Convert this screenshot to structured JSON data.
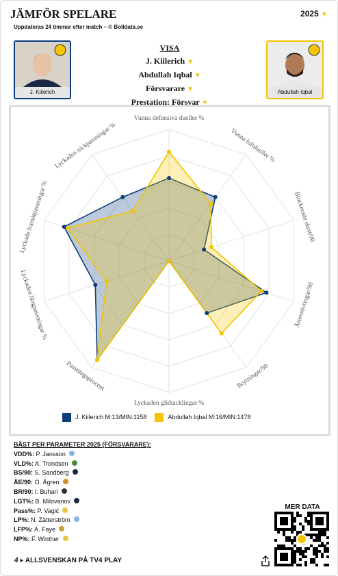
{
  "header": {
    "title": "JÄMFÖR SPELARE",
    "subtitle": "Uppdateras 24 timmar efter match – © Bolldata.se",
    "season": "2025"
  },
  "players": [
    "J. Kiilerich",
    "Abdullah Iqbal"
  ],
  "selector": {
    "heading": "VISA",
    "options": [
      "J. Kiilerich",
      "Abdullah Iqbal",
      "Försvarare",
      "Prestation: Försvar"
    ]
  },
  "chart_data": {
    "type": "radar",
    "categories": [
      "Vunna defensiva dueller %",
      "Vunna luftdueller %",
      "Blockerade skott/90",
      "Återerövringar/90",
      "Brytningar/90",
      "Lyckaden glidtacklingar %",
      "Passningsprocent",
      "Lyckaden långpassningar %",
      "Lyckade framåtpassningar %",
      "Lyckaden nickpassningar %"
    ],
    "series": [
      {
        "name": "J. Kiilerich M:13/MIN:1158",
        "color": "#0b3d7a",
        "values": [
          63,
          60,
          28,
          78,
          49,
          0,
          93,
          59,
          84,
          60
        ]
      },
      {
        "name": "Abdullah Iqbal M:16/MIN:1478",
        "color": "#f5c400",
        "values": [
          83,
          54,
          34,
          74,
          68,
          0,
          93,
          50,
          81,
          47
        ]
      }
    ],
    "rlim": [
      0,
      100
    ],
    "rticks": [
      20,
      40,
      60,
      80,
      100
    ],
    "grid": true
  },
  "best": {
    "title": "BÄST PER PARAMETER 2025 (FÖRSVARARE):",
    "items": [
      {
        "key": "VDD%:",
        "name": "P. Jansson"
      },
      {
        "key": "VLD%:",
        "name": "A. Trondsen"
      },
      {
        "key": "BS/90:",
        "name": "S. Sandberg"
      },
      {
        "key": "ÅE/90:",
        "name": "O. Ågren"
      },
      {
        "key": "BR/90:",
        "name": "I. Buhari"
      },
      {
        "key": "LGT%:",
        "name": "B. Milovanov"
      },
      {
        "key": "Pass%:",
        "name": "P. Vagić"
      },
      {
        "key": "LP%:",
        "name": "N. Zätterström"
      },
      {
        "key": "LFP%:",
        "name": "A. Faye"
      },
      {
        "key": "NP%:",
        "name": "F. Winther"
      }
    ]
  },
  "qr_label": "MER DATA",
  "footer": "ALLSVENSKAN PÅ TV4 PLAY"
}
